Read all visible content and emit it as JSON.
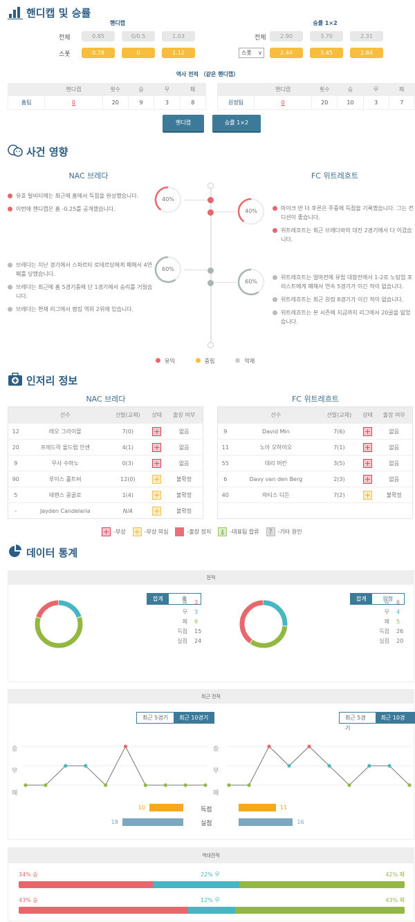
{
  "colors": {
    "win": "#e8676a",
    "draw": "#45b6c2",
    "loss": "#92b842",
    "spot": "#f6bd3e",
    "primary": "#3d7a9a",
    "title": "#2c5d85",
    "goals_for": "#f8a81c",
    "goals_against": "#7ba7bf"
  },
  "handicap_section": {
    "title": "핸디캡 및 승률",
    "icon": "bar-chart-icon",
    "handicap": {
      "header": "핸디캡",
      "rows": [
        {
          "label": "전체",
          "values": [
            "0.85",
            "0/0.5",
            "1.03"
          ]
        },
        {
          "label": "스폿",
          "values": [
            "0.78",
            "0",
            "1.12"
          ]
        }
      ]
    },
    "odds": {
      "header": "승률 1×2",
      "rows": [
        {
          "label": "전체",
          "values": [
            "2.90",
            "3.70",
            "2.31"
          ]
        },
        {
          "label": "스폿",
          "values": [
            "2.44",
            "3.45",
            "2.84"
          ]
        }
      ],
      "select_value": "스폿"
    },
    "history": {
      "title": "역사 전적 （같은 핸디캡）",
      "columns": [
        "",
        "핸디캡",
        "횟수",
        "승",
        "무",
        "패"
      ],
      "home": [
        "홈팀",
        "0",
        "20",
        "9",
        "3",
        "8"
      ],
      "away": [
        "원정팀",
        "0",
        "20",
        "10",
        "3",
        "7"
      ]
    },
    "buttons": [
      "핸디캡",
      "승률 1×2"
    ]
  },
  "events_section": {
    "title": "사건 영향",
    "home_team": "NAC 브레다",
    "away_team": "FC 위트레흐트",
    "home_positive_pct": "40%",
    "away_positive_pct": "40%",
    "home_negative_pct": "60%",
    "away_negative_pct": "60%",
    "home_positive": [
      "유호 탈비티에는 최근에 홈에서 득점을 완성했습니다.",
      "이번에 핸디캡은 홈 -0.25를 공개했습니다."
    ],
    "away_positive": [
      "마이크 반 더 후른은 주중에 득점을 기록했습니다. 그는 컨디션이 좋습니다.",
      "위트레흐트는 최근 브레다와의 대진 2경기에서 다 이겼습니다."
    ],
    "home_negative": [
      "브레다는 지난 경기에서 스파르타 로테르담에게 패해서 4연패를 당했습니다.",
      "브레다는 최근에 홈 5경기중에 단 1경기에서 승리를 거뒀습니다.",
      "브레다는 현재 리그에서 랭킹 역위 2위에 있습니다."
    ],
    "away_negative": [
      "위트레흐트는 얼마전에 유럽 대항전에서 1-2로 노팅엄 포리스트에게 패해서 연속 5경기가 이긴 적이 없습니다.",
      "위트레흐트는 최근 원정 8경기가 이긴 적이 없습니다.",
      "위트레흐트는 본 시즌에 지금까지 리그에서 20골을 잃었습니다."
    ],
    "legend": [
      "유익",
      "중립",
      "악재"
    ]
  },
  "injury_section": {
    "title": "인저리 정보",
    "columns": [
      "선수",
      "선발(교체)",
      "상태",
      "출장 여부"
    ],
    "home_team": "NAC 브레다",
    "away_team": "FC 위트레흐트",
    "home": [
      [
        "12",
        "레오 그라이믈",
        "7(0)",
        "injury",
        "없음"
      ],
      [
        "20",
        "프레드릭 올드럽 안센",
        "4(1)",
        "injury",
        "없음"
      ],
      [
        "9",
        "무사 수마노",
        "0(3)",
        "injury",
        "없음"
      ],
      [
        "90",
        "루이스 홀트비",
        "12(0)",
        "doubt",
        "불확정"
      ],
      [
        "5",
        "테렌스 콩골로",
        "1(4)",
        "doubt",
        "불확정"
      ],
      [
        "-",
        "Jayden Candelaria",
        "N/A",
        "doubt",
        "불확정"
      ]
    ],
    "away": [
      [
        "9",
        "David Min",
        "7(6)",
        "injury",
        "없음"
      ],
      [
        "11",
        "노아 오하이오",
        "7(1)",
        "injury",
        "없음"
      ],
      [
        "55",
        "데리 머킨",
        "3(5)",
        "injury",
        "없음"
      ],
      [
        "6",
        "Davy van den Berg",
        "2(3)",
        "injury",
        "없음"
      ],
      [
        "40",
        "마티스 디든",
        "7(2)",
        "doubt",
        "불확정"
      ]
    ],
    "legend": [
      {
        "type": "injury",
        "label": "-부상"
      },
      {
        "type": "doubt",
        "label": "-부상 의심"
      },
      {
        "type": "suspend",
        "label": "-출장 정지"
      },
      {
        "type": "national",
        "label": "-대표팀 합류"
      },
      {
        "type": "other",
        "label": "-기타 원인"
      }
    ]
  },
  "stats_section": {
    "title": "데이터 통계",
    "record": {
      "header": "전적",
      "home": {
        "tabs": [
          "합계",
          "홈"
        ],
        "active": 0,
        "labels": [
          "승",
          "무",
          "패",
          "득점",
          "실점"
        ],
        "values": [
          "3",
          "3",
          "9",
          "15",
          "24"
        ]
      },
      "away": {
        "tabs": [
          "합계",
          "원정"
        ],
        "active": 0,
        "labels": [
          "승",
          "무",
          "패",
          "득점",
          "실점"
        ],
        "values": [
          "6",
          "4",
          "5",
          "26",
          "20"
        ]
      }
    },
    "recent": {
      "header": "최근 전적",
      "tabs": [
        "최근 5경기",
        "최근 10경기"
      ],
      "active": 1,
      "y_labels": [
        "승",
        "무",
        "패"
      ],
      "home_results": [
        "L",
        "L",
        "D",
        "D",
        "L",
        "W",
        "L",
        "L",
        "L",
        "L"
      ],
      "away_results": [
        "L",
        "L",
        "W",
        "D",
        "W",
        "D",
        "L",
        "D",
        "D",
        "L"
      ],
      "goals_label": "득점",
      "conceded_label": "실점",
      "home_goals": "10",
      "home_conceded": "18",
      "away_goals": "11",
      "away_conceded": "16"
    },
    "h2h": {
      "header": "역대전적",
      "rows": [
        {
          "win": 34,
          "draw": 22,
          "loss": 42,
          "win_label": "34% 승",
          "draw_label": "22% 무",
          "loss_label": "42% 패"
        },
        {
          "win": 43,
          "draw": 12,
          "loss": 43,
          "win_label": "43% 승",
          "draw_label": "12% 무",
          "loss_label": "43% 패"
        }
      ]
    }
  }
}
